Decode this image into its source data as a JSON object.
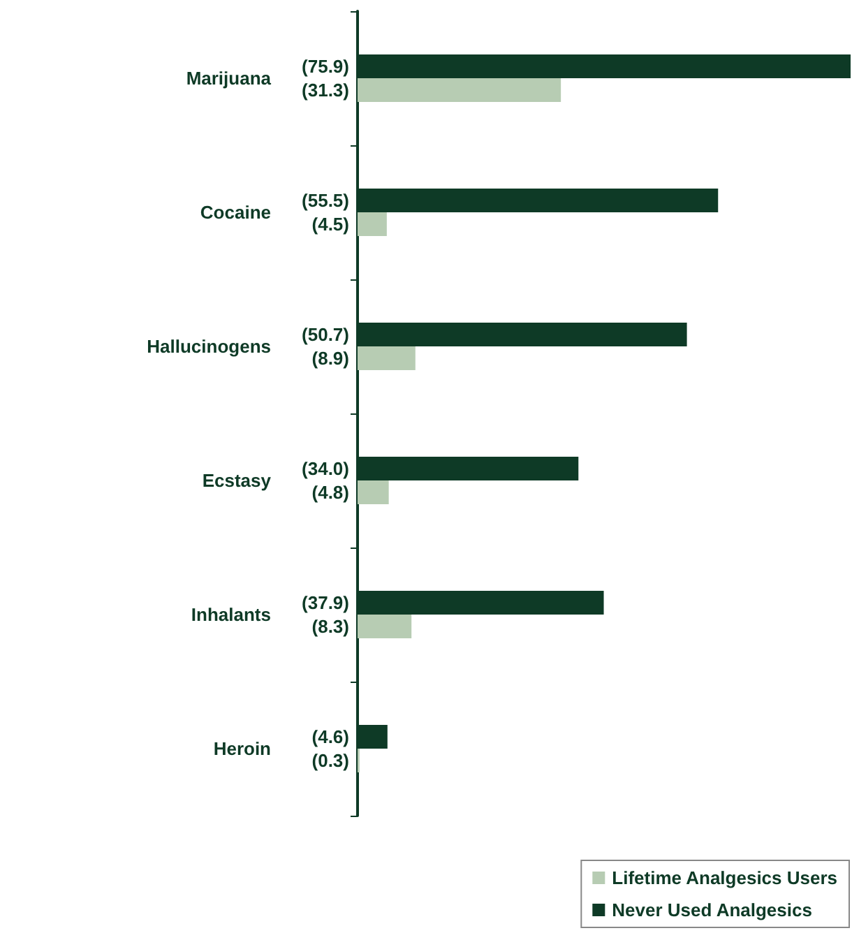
{
  "chart_data": {
    "type": "bar",
    "orientation": "horizontal",
    "categories": [
      "Marijuana",
      "Cocaine",
      "Hallucinogens",
      "Ecstasy",
      "Inhalants",
      "Heroin"
    ],
    "series": [
      {
        "name": "Lifetime Analgesics Users",
        "color": "#b7ccb3",
        "values": [
          31.3,
          4.5,
          8.9,
          4.8,
          8.3,
          0.3
        ],
        "value_labels": [
          "(31.3)",
          "(4.5)",
          "(8.9)",
          "(4.8)",
          "(8.3)",
          "(0.3)"
        ]
      },
      {
        "name": "Never Used Analgesics",
        "color": "#0e3a26",
        "values": [
          75.9,
          55.5,
          50.7,
          34.0,
          37.9,
          4.6
        ],
        "value_labels": [
          "(75.9)",
          "(55.5)",
          "(50.7)",
          "(34.0)",
          "(37.9)",
          "(4.6)"
        ]
      }
    ],
    "xlim": [
      0,
      75.9
    ],
    "tick_labels": "y",
    "grid": false,
    "legend": "bottom right"
  }
}
